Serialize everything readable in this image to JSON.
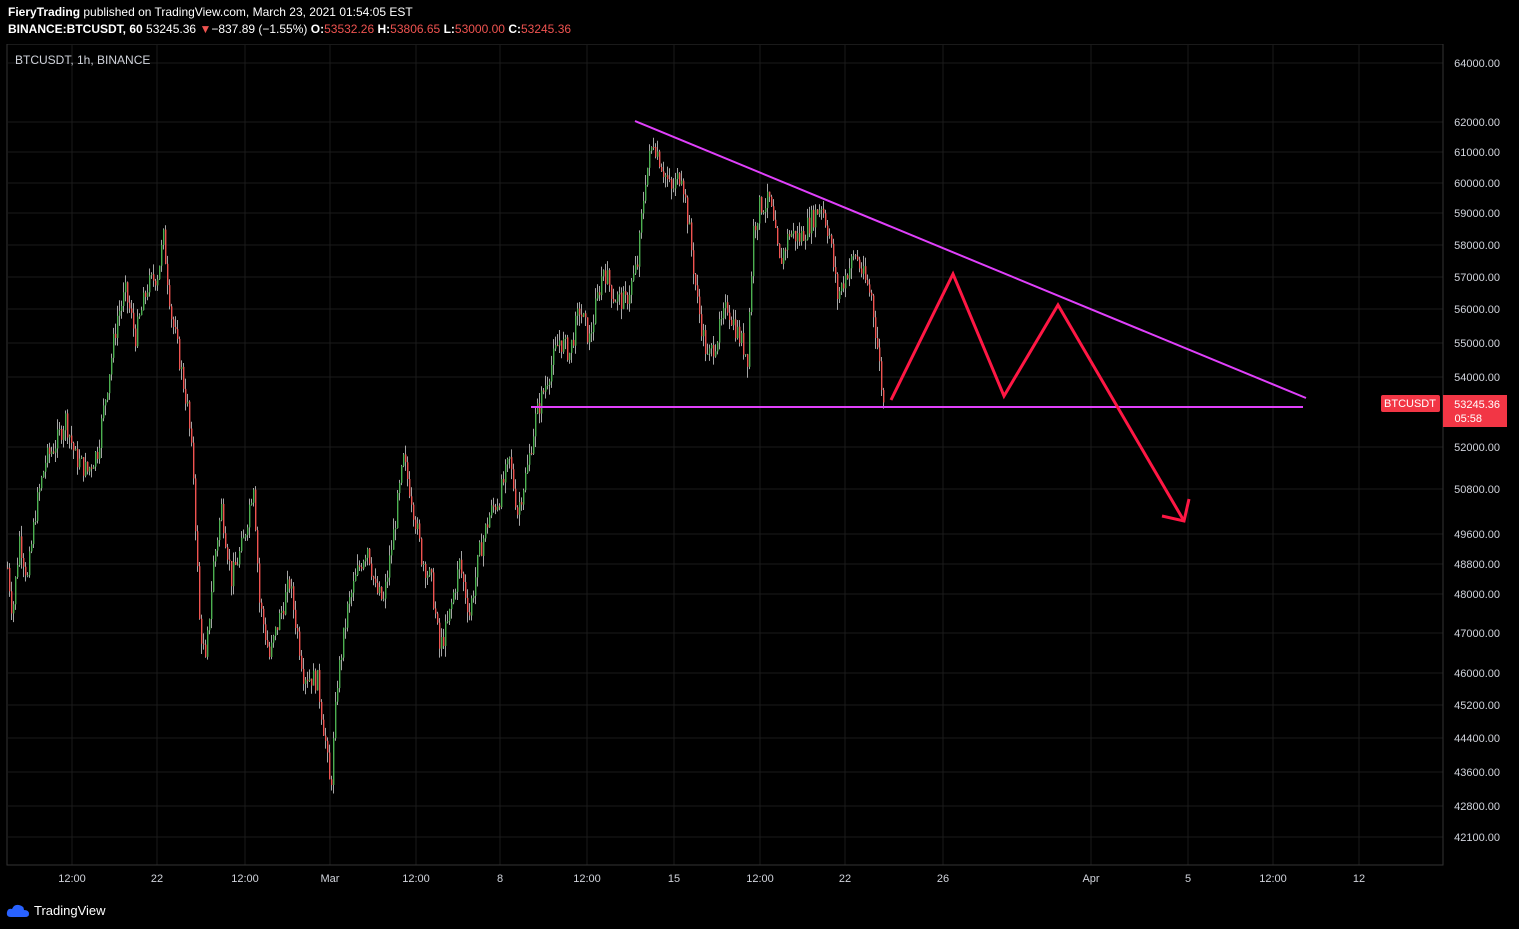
{
  "header": {
    "author": "FieryTrading",
    "published": "published on TradingView.com, March 23, 2021 01:54:05 EST",
    "symbol_line": "BINANCE:BTCUSDT, 60",
    "last": "53245.36",
    "change_arrow": "▼",
    "change": "−837.89 (−1.55%)",
    "o_label": "O:",
    "o": "53532.26",
    "h_label": "H:",
    "h": "53806.65",
    "l_label": "L:",
    "l": "53000.00",
    "c_label": "C:",
    "c": "53245.36"
  },
  "chart_label": "BTCUSDT, 1h, BINANCE",
  "price_tag": {
    "symbol": "BTCUSDT",
    "price": "53245.36",
    "countdown": "05:58",
    "color": "#f23645"
  },
  "footer": {
    "brand": "TradingView"
  },
  "colors": {
    "up": "#4caf50",
    "down": "#ef5350",
    "trendline": "#e040fb",
    "projection": "#ff1744",
    "grid": "#1a1a1a"
  },
  "chart_data": {
    "type": "candlestick",
    "title": "BTCUSDT, 1h, BINANCE",
    "yscale": "log",
    "ylim": [
      41500,
      65000
    ],
    "y_ticks": [
      "64000.00",
      "62000.00",
      "61000.00",
      "60000.00",
      "59000.00",
      "58000.00",
      "57000.00",
      "56000.00",
      "55000.00",
      "54000.00",
      "52000.00",
      "50800.00",
      "49600.00",
      "48800.00",
      "48000.00",
      "47000.00",
      "46000.00",
      "45200.00",
      "44400.00",
      "43600.00",
      "42800.00",
      "42100.00"
    ],
    "x_ticks": [
      "12:00",
      "22",
      "12:00",
      "Mar",
      "12:00",
      "8",
      "12:00",
      "15",
      "12:00",
      "22",
      "26",
      "Apr",
      "5",
      "12:00",
      "12"
    ],
    "price_path": [
      [
        0,
        48700
      ],
      [
        5,
        47500
      ],
      [
        12,
        49500
      ],
      [
        20,
        48400
      ],
      [
        28,
        50200
      ],
      [
        38,
        51600
      ],
      [
        50,
        52200
      ],
      [
        58,
        52800
      ],
      [
        68,
        51700
      ],
      [
        80,
        51300
      ],
      [
        90,
        51900
      ],
      [
        100,
        53800
      ],
      [
        110,
        55800
      ],
      [
        118,
        56500
      ],
      [
        128,
        55200
      ],
      [
        140,
        56700
      ],
      [
        150,
        57100
      ],
      [
        156,
        58200
      ],
      [
        164,
        55800
      ],
      [
        172,
        54500
      ],
      [
        180,
        53100
      ],
      [
        186,
        51200
      ],
      [
        192,
        47300
      ],
      [
        198,
        46200
      ],
      [
        206,
        48800
      ],
      [
        214,
        50300
      ],
      [
        224,
        48400
      ],
      [
        236,
        49400
      ],
      [
        246,
        51000
      ],
      [
        252,
        47800
      ],
      [
        262,
        46400
      ],
      [
        270,
        47200
      ],
      [
        282,
        48300
      ],
      [
        296,
        46000
      ],
      [
        310,
        45800
      ],
      [
        318,
        44300
      ],
      [
        323,
        43100
      ],
      [
        330,
        45800
      ],
      [
        340,
        47600
      ],
      [
        350,
        48600
      ],
      [
        360,
        49300
      ],
      [
        368,
        48100
      ],
      [
        376,
        47800
      ],
      [
        386,
        49600
      ],
      [
        396,
        51600
      ],
      [
        404,
        50600
      ],
      [
        414,
        49000
      ],
      [
        424,
        48300
      ],
      [
        432,
        46600
      ],
      [
        440,
        47200
      ],
      [
        452,
        48800
      ],
      [
        462,
        47500
      ],
      [
        472,
        49100
      ],
      [
        482,
        50100
      ],
      [
        492,
        50600
      ],
      [
        502,
        51600
      ],
      [
        510,
        50200
      ],
      [
        520,
        51400
      ],
      [
        528,
        52800
      ],
      [
        540,
        54000
      ],
      [
        552,
        55100
      ],
      [
        562,
        54700
      ],
      [
        572,
        56000
      ],
      [
        582,
        55100
      ],
      [
        596,
        57300
      ],
      [
        606,
        56400
      ],
      [
        618,
        56200
      ],
      [
        630,
        57400
      ],
      [
        638,
        60200
      ],
      [
        646,
        61400
      ],
      [
        654,
        60600
      ],
      [
        664,
        59700
      ],
      [
        674,
        60400
      ],
      [
        682,
        58400
      ],
      [
        690,
        56200
      ],
      [
        700,
        54500
      ],
      [
        710,
        55200
      ],
      [
        720,
        56100
      ],
      [
        730,
        55300
      ],
      [
        740,
        54600
      ],
      [
        746,
        58500
      ],
      [
        752,
        59200
      ],
      [
        762,
        59400
      ],
      [
        772,
        57400
      ],
      [
        782,
        58400
      ],
      [
        792,
        58200
      ],
      [
        804,
        58800
      ],
      [
        814,
        59300
      ],
      [
        822,
        58300
      ],
      [
        830,
        56400
      ],
      [
        840,
        57200
      ],
      [
        848,
        57700
      ],
      [
        856,
        57000
      ],
      [
        864,
        56400
      ],
      [
        870,
        54900
      ],
      [
        876,
        53200
      ]
    ],
    "annotations": [
      {
        "type": "trendline",
        "from": [
          "2021-03-13",
          62000
        ],
        "to": [
          "2021-04-07",
          53600
        ]
      },
      {
        "type": "support",
        "y": 53200
      },
      {
        "type": "projection",
        "path": [
          [
            53300
          ],
          [
            57100
          ],
          [
            53500
          ],
          [
            56100
          ],
          [
            49700
          ]
        ]
      }
    ],
    "last_price": 53245.36
  }
}
